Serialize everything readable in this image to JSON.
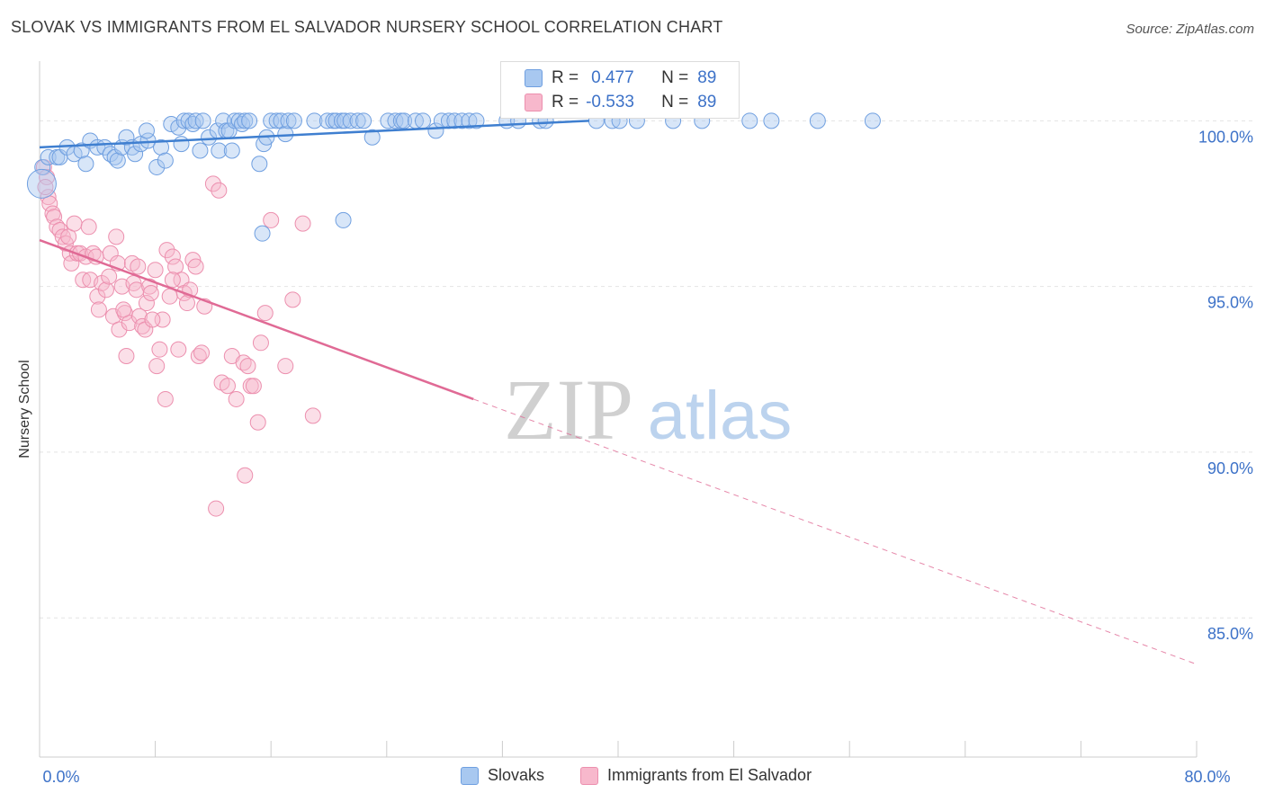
{
  "title": "SLOVAK VS IMMIGRANTS FROM EL SALVADOR NURSERY SCHOOL CORRELATION CHART",
  "source": "Source: ZipAtlas.com",
  "watermark": {
    "zip": "ZIP",
    "atlas": "atlas"
  },
  "colors": {
    "blue_fill": "#a8c8f0",
    "blue_stroke": "#6f9fe0",
    "blue_line": "#3f7fd0",
    "pink_fill": "#f7b8cc",
    "pink_stroke": "#ec8fae",
    "pink_line": "#e06a95",
    "value_text": "#3d72c8"
  },
  "stats": {
    "rows": [
      {
        "series": "slovaks",
        "r_label": "R =",
        "r_value": "0.477",
        "n_label": "N =",
        "n_value": "89"
      },
      {
        "series": "el_salvador",
        "r_label": "R =",
        "r_value": "-0.533",
        "n_label": "N =",
        "n_value": "89"
      }
    ]
  },
  "legend": {
    "slovaks": "Slovaks",
    "el_salvador": "Immigrants from El Salvador"
  },
  "chart_data": {
    "type": "scatter",
    "title": "SLOVAK VS IMMIGRANTS FROM EL SALVADOR NURSERY SCHOOL CORRELATION CHART",
    "xlabel": "",
    "ylabel": "Nursery School",
    "xlim": [
      0,
      80
    ],
    "ylim": [
      80.8,
      101.8
    ],
    "x_tick_labels": [
      {
        "value": 0,
        "label": "0.0%"
      },
      {
        "value": 80,
        "label": "80.0%"
      }
    ],
    "x_minor_ticks": [
      0,
      8,
      16,
      24,
      32,
      40,
      48,
      56,
      64,
      72,
      80
    ],
    "y_ticks": [
      {
        "value": 100,
        "label": "100.0%"
      },
      {
        "value": 95,
        "label": "95.0%"
      },
      {
        "value": 90,
        "label": "90.0%"
      },
      {
        "value": 85,
        "label": "85.0%"
      }
    ],
    "grid": true,
    "series": [
      {
        "name": "Slovaks",
        "trend": {
          "x": [
            0,
            38
          ],
          "y": [
            99.2,
            100.0
          ],
          "dashed_to": null
        },
        "points": [
          [
            0.2,
            98.6
          ],
          [
            0.6,
            98.9
          ],
          [
            1.2,
            98.9
          ],
          [
            1.4,
            98.9
          ],
          [
            1.9,
            99.2
          ],
          [
            2.4,
            99.0
          ],
          [
            2.9,
            99.1
          ],
          [
            3.2,
            98.7
          ],
          [
            3.5,
            99.4
          ],
          [
            4.0,
            99.2
          ],
          [
            4.5,
            99.2
          ],
          [
            4.9,
            99.0
          ],
          [
            5.2,
            98.9
          ],
          [
            5.4,
            98.8
          ],
          [
            5.7,
            99.2
          ],
          [
            6.0,
            99.5
          ],
          [
            6.4,
            99.2
          ],
          [
            6.6,
            99.0
          ],
          [
            7.0,
            99.3
          ],
          [
            7.5,
            99.4
          ],
          [
            7.4,
            99.7
          ],
          [
            8.1,
            98.6
          ],
          [
            8.4,
            99.2
          ],
          [
            8.7,
            98.8
          ],
          [
            9.1,
            99.9
          ],
          [
            9.6,
            99.8
          ],
          [
            9.8,
            99.3
          ],
          [
            10.0,
            100.0
          ],
          [
            10.3,
            100.0
          ],
          [
            10.6,
            99.9
          ],
          [
            10.8,
            100.0
          ],
          [
            11.1,
            99.1
          ],
          [
            11.3,
            100.0
          ],
          [
            11.7,
            99.5
          ],
          [
            12.3,
            99.7
          ],
          [
            12.4,
            99.1
          ],
          [
            12.7,
            100.0
          ],
          [
            12.9,
            99.7
          ],
          [
            13.1,
            99.7
          ],
          [
            13.3,
            99.1
          ],
          [
            13.5,
            100.0
          ],
          [
            13.8,
            100.0
          ],
          [
            14.0,
            99.9
          ],
          [
            14.2,
            100.0
          ],
          [
            14.5,
            100.0
          ],
          [
            15.2,
            98.7
          ],
          [
            15.4,
            96.6
          ],
          [
            15.5,
            99.3
          ],
          [
            15.7,
            99.5
          ],
          [
            16.0,
            100.0
          ],
          [
            16.4,
            100.0
          ],
          [
            16.7,
            100.0
          ],
          [
            17.0,
            99.6
          ],
          [
            17.2,
            100.0
          ],
          [
            17.6,
            100.0
          ],
          [
            19.0,
            100.0
          ],
          [
            19.9,
            100.0
          ],
          [
            20.3,
            100.0
          ],
          [
            20.5,
            100.0
          ],
          [
            20.9,
            100.0
          ],
          [
            21.1,
            100.0
          ],
          [
            21.5,
            100.0
          ],
          [
            21.0,
            97.0
          ],
          [
            22.0,
            100.0
          ],
          [
            22.4,
            100.0
          ],
          [
            23.0,
            99.5
          ],
          [
            24.1,
            100.0
          ],
          [
            24.6,
            100.0
          ],
          [
            25.0,
            100.0
          ],
          [
            25.2,
            100.0
          ],
          [
            26.0,
            100.0
          ],
          [
            26.5,
            100.0
          ],
          [
            27.4,
            99.7
          ],
          [
            27.8,
            100.0
          ],
          [
            28.3,
            100.0
          ],
          [
            28.7,
            100.0
          ],
          [
            29.2,
            100.0
          ],
          [
            29.7,
            100.0
          ],
          [
            30.2,
            100.0
          ],
          [
            32.3,
            100.0
          ],
          [
            33.1,
            100.0
          ],
          [
            34.6,
            100.0
          ],
          [
            35.0,
            100.0
          ],
          [
            38.5,
            100.0
          ],
          [
            39.6,
            100.0
          ],
          [
            40.1,
            100.0
          ],
          [
            41.3,
            100.0
          ],
          [
            43.8,
            100.0
          ],
          [
            45.8,
            100.0
          ]
        ],
        "extra_points": [
          [
            0.15,
            98.1
          ],
          [
            49.1,
            100.0
          ],
          [
            50.6,
            100.0
          ],
          [
            53.8,
            100.0
          ],
          [
            57.6,
            100.0
          ]
        ]
      },
      {
        "name": "Immigrants from El Salvador",
        "trend": {
          "x": [
            0,
            30
          ],
          "y": [
            96.4,
            91.6
          ],
          "dashed_to": {
            "x": 80,
            "y": 83.6
          }
        },
        "points": [
          [
            0.3,
            98.6
          ],
          [
            0.5,
            98.3
          ],
          [
            0.6,
            97.7
          ],
          [
            0.7,
            97.5
          ],
          [
            0.9,
            97.2
          ],
          [
            1.0,
            97.1
          ],
          [
            1.2,
            96.8
          ],
          [
            1.4,
            96.7
          ],
          [
            1.6,
            96.5
          ],
          [
            1.8,
            96.3
          ],
          [
            2.0,
            96.5
          ],
          [
            2.1,
            96.0
          ],
          [
            2.2,
            95.7
          ],
          [
            2.4,
            96.9
          ],
          [
            2.6,
            96.0
          ],
          [
            2.8,
            96.0
          ],
          [
            3.0,
            95.2
          ],
          [
            3.2,
            95.9
          ],
          [
            3.4,
            96.8
          ],
          [
            3.5,
            95.2
          ],
          [
            3.7,
            96.0
          ],
          [
            4.0,
            94.7
          ],
          [
            4.1,
            94.3
          ],
          [
            4.3,
            95.1
          ],
          [
            4.6,
            94.9
          ],
          [
            4.8,
            95.3
          ],
          [
            4.9,
            96.0
          ],
          [
            5.1,
            94.1
          ],
          [
            5.3,
            96.5
          ],
          [
            5.4,
            95.7
          ],
          [
            5.5,
            93.7
          ],
          [
            5.7,
            95.0
          ],
          [
            5.9,
            94.2
          ],
          [
            6.0,
            92.9
          ],
          [
            6.2,
            93.9
          ],
          [
            6.4,
            95.7
          ],
          [
            6.5,
            95.1
          ],
          [
            6.7,
            94.9
          ],
          [
            6.9,
            94.1
          ],
          [
            7.1,
            93.8
          ],
          [
            7.3,
            93.7
          ],
          [
            7.4,
            94.5
          ],
          [
            7.6,
            95.0
          ],
          [
            7.7,
            94.8
          ],
          [
            8.0,
            95.5
          ],
          [
            8.1,
            92.6
          ],
          [
            8.3,
            93.1
          ],
          [
            8.5,
            94.0
          ],
          [
            8.7,
            91.6
          ],
          [
            8.8,
            96.1
          ],
          [
            9.0,
            94.7
          ],
          [
            9.2,
            95.9
          ],
          [
            9.4,
            95.6
          ],
          [
            9.6,
            93.1
          ],
          [
            9.8,
            95.2
          ],
          [
            10.0,
            94.8
          ],
          [
            10.2,
            94.5
          ],
          [
            10.4,
            94.9
          ],
          [
            10.6,
            95.8
          ],
          [
            10.8,
            95.6
          ],
          [
            11.0,
            92.9
          ],
          [
            11.2,
            93.0
          ],
          [
            11.4,
            94.4
          ],
          [
            12.0,
            98.1
          ],
          [
            12.4,
            97.9
          ],
          [
            12.6,
            92.1
          ],
          [
            13.0,
            92.0
          ],
          [
            13.3,
            92.9
          ],
          [
            13.6,
            91.6
          ],
          [
            14.1,
            92.7
          ],
          [
            14.4,
            92.6
          ],
          [
            14.6,
            92.0
          ],
          [
            14.8,
            92.0
          ],
          [
            15.1,
            90.9
          ],
          [
            15.3,
            93.3
          ],
          [
            15.6,
            94.2
          ],
          [
            16.0,
            97.0
          ],
          [
            17.0,
            92.6
          ],
          [
            17.5,
            94.6
          ],
          [
            18.2,
            96.9
          ],
          [
            18.9,
            91.1
          ],
          [
            14.2,
            89.3
          ],
          [
            12.2,
            88.3
          ],
          [
            9.2,
            95.2
          ],
          [
            7.8,
            94.0
          ],
          [
            6.8,
            95.6
          ],
          [
            5.8,
            94.3
          ],
          [
            3.9,
            95.9
          ],
          [
            0.4,
            98.0
          ]
        ]
      }
    ]
  }
}
